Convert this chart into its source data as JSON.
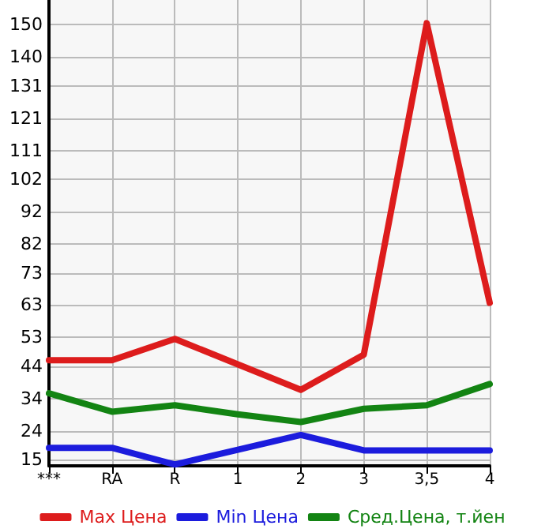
{
  "chart_data": {
    "type": "line",
    "categories": [
      "***",
      "RA",
      "R",
      "1",
      "2",
      "3",
      "3,5",
      "4"
    ],
    "series": [
      {
        "name": "Max Цена",
        "color": "#dd1c1c",
        "values": [
          45.9,
          45.9,
          52.5,
          44.6,
          36.7,
          47.6,
          150.5,
          63.7
        ]
      },
      {
        "name": "Min Цена",
        "color": "#1c1cdd",
        "values": [
          18.7,
          18.7,
          13.5,
          18.1,
          22.7,
          17.9,
          17.9,
          17.9
        ]
      },
      {
        "name": "Сред.Цена, т.йен",
        "color": "#138413",
        "values": [
          35.6,
          29.9,
          31.9,
          29.1,
          26.7,
          30.8,
          31.9,
          38.5
        ]
      }
    ],
    "ylim": [
      13.1,
      157.7
    ],
    "yticks": [
      15,
      24,
      34,
      44,
      53,
      63,
      73,
      82,
      92,
      102,
      111,
      121,
      131,
      140,
      150
    ],
    "grid": true,
    "legend": "bottom",
    "marker": "none",
    "line_style": "solid"
  }
}
